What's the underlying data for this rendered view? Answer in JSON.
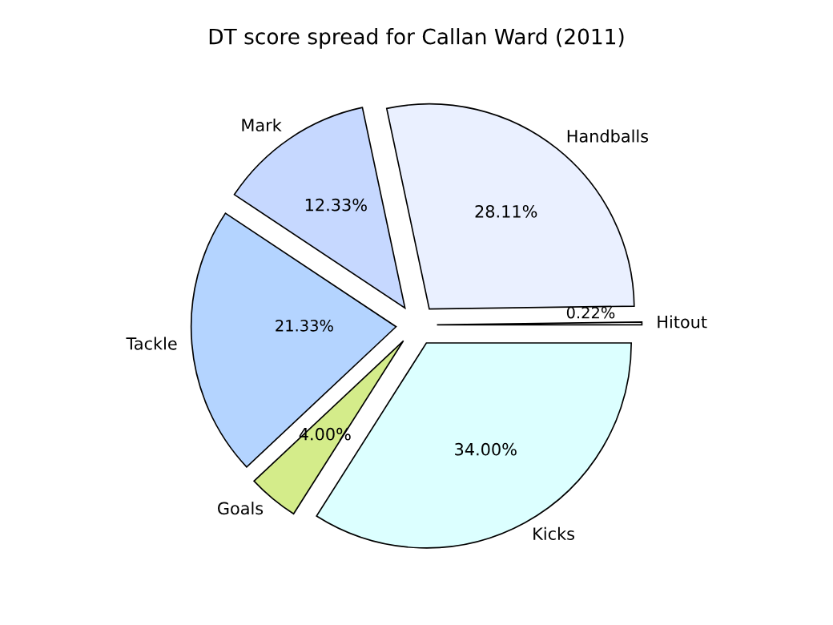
{
  "chart_data": {
    "type": "pie",
    "title": "DT score spread for Callan Ward (2011)",
    "categories": [
      "Hitout",
      "Handballs",
      "Mark",
      "Tackle",
      "Goals",
      "Kicks"
    ],
    "values": [
      0.22,
      28.11,
      12.33,
      21.33,
      4.0,
      34.0
    ],
    "value_labels": [
      "0.22%",
      "28.11%",
      "12.33%",
      "21.33%",
      "4.00%",
      "34.00%"
    ],
    "colors": [
      "#ffffff",
      "#eaf0ff",
      "#c6d8ff",
      "#b4d4ff",
      "#d4ec8a",
      "#dcffff"
    ],
    "legend": false
  }
}
